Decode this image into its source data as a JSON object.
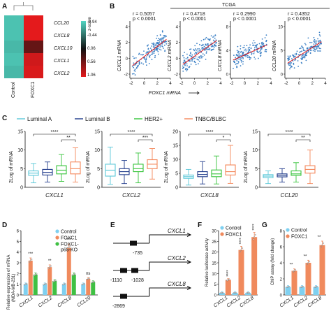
{
  "panel_letters": [
    "A",
    "B",
    "C",
    "D",
    "E",
    "F",
    "G"
  ],
  "colors": {
    "heat_low": "#52d6c3",
    "heat_mid": "#111111",
    "heat_high": "#e41a1c",
    "luminal_a": "#5bc8d8",
    "luminal_b": "#1f3a8a",
    "her2": "#36c43a",
    "tnbc": "#f4875a",
    "control": "#7fd0f0",
    "foxc1": "#f08a5d",
    "foxc1_ko": "#3fc043",
    "scatter": "#3a7fc4",
    "fitline": "#e41a1c"
  },
  "panelA": {
    "genes": [
      "CCL20",
      "CXCL8",
      "CXCL10",
      "CXCL1",
      "CXCL2"
    ],
    "groups": [
      "Control",
      "FOXC1"
    ],
    "zscore_title": "z-score",
    "scale_ticks": [
      "-0.94",
      "-0.44",
      "0.06",
      "0.56",
      "1.06"
    ],
    "heat": [
      [
        -0.9,
        1.0
      ],
      [
        -0.9,
        1.0
      ],
      [
        -0.85,
        0.4
      ],
      [
        -0.9,
        0.9
      ],
      [
        -0.85,
        0.95
      ]
    ]
  },
  "panelB": {
    "source": "TCGA",
    "xlabel": "FOXC1 mRNA",
    "x_ticks": [
      "-2",
      "0",
      "2",
      "4"
    ],
    "plots": [
      {
        "ylabel": "CXCL1 mRNA",
        "r": "r = 0.5057",
        "p": "p < 0.0001",
        "y_ticks": [
          "-2",
          "0",
          "2",
          "4"
        ]
      },
      {
        "ylabel": "CXCL2 mRNA",
        "r": "r = 0.4718",
        "p": "p < 0.0001",
        "y_ticks": [
          "-2",
          "0",
          "2",
          "4"
        ]
      },
      {
        "ylabel": "CXCL8 mRNA",
        "r": "r = 0.2990",
        "p": "p < 0.0001",
        "y_ticks": [
          "0",
          "4",
          "8"
        ]
      },
      {
        "ylabel": "CCL20 mRNA",
        "r": "r = 0.4352",
        "p": "p < 0.0001",
        "y_ticks": [
          "0",
          "5",
          "10"
        ]
      }
    ]
  },
  "panelC": {
    "legend": [
      "Luminal A",
      "Luminal B",
      "HER2+",
      "TNBC/BLBC"
    ],
    "ylabel": "2Log of mRNA",
    "plots": [
      {
        "gene": "CXCL1",
        "y_ticks": [
          "0",
          "5",
          "10",
          "15"
        ],
        "ymax": 15,
        "sig_top": "****",
        "sig_right": "**",
        "boxes": [
          [
            1.2,
            3.2,
            3.8,
            4.4,
            6.4
          ],
          [
            1.4,
            3.3,
            4.0,
            4.8,
            6.8
          ],
          [
            1.6,
            3.6,
            4.6,
            5.8,
            8.8
          ],
          [
            1.4,
            3.6,
            5.0,
            6.8,
            10.6
          ]
        ]
      },
      {
        "gene": "CXCL2",
        "y_ticks": [
          "0",
          "5",
          "10",
          "15"
        ],
        "ymax": 15,
        "sig_top": "****",
        "sig_right": "***",
        "boxes": [
          [
            0.8,
            3.0,
            4.6,
            6.2,
            10.8
          ],
          [
            1.0,
            3.4,
            4.2,
            5.0,
            7.2
          ],
          [
            1.2,
            4.2,
            5.0,
            6.2,
            9.2
          ],
          [
            2.2,
            5.0,
            6.2,
            7.4,
            10.4
          ]
        ]
      },
      {
        "gene": "CXCL8",
        "y_ticks": [
          "0",
          "5",
          "10",
          "15",
          "20"
        ],
        "ymax": 20,
        "sig_top": "****",
        "sig_right": "*",
        "boxes": [
          [
            0.8,
            3.2,
            3.8,
            4.4,
            6.4
          ],
          [
            1.2,
            3.8,
            4.6,
            5.6,
            9.2
          ],
          [
            1.2,
            3.8,
            4.8,
            6.2,
            11.2
          ],
          [
            1.4,
            4.4,
            5.6,
            8.0,
            15.0
          ]
        ]
      },
      {
        "gene": "CCL20",
        "y_ticks": [
          "0",
          "5",
          "10",
          "15"
        ],
        "ymax": 15,
        "sig_top": "****",
        "sig_right": "**",
        "boxes": [
          [
            1.0,
            2.6,
            3.0,
            3.4,
            4.4
          ],
          [
            1.4,
            2.8,
            3.2,
            3.6,
            5.0
          ],
          [
            1.4,
            3.2,
            3.6,
            4.4,
            6.6
          ],
          [
            1.0,
            3.8,
            4.8,
            5.8,
            10.0
          ]
        ]
      }
    ]
  },
  "panelD": {
    "ylabel": "Relative expression of mRNA",
    "ylabel2": "(MDA-MB-231)",
    "legend": [
      "Control",
      "FOXC1",
      "FOXC1-",
      "p65-KO"
    ],
    "categories": [
      "CXCL1",
      "CXCL2",
      "CXCL8",
      "CCL20"
    ],
    "y_ticks": [
      "0",
      "1",
      "2",
      "3",
      "4",
      "5",
      "6"
    ],
    "ymax": 6,
    "series": [
      [
        1.0,
        1.0,
        1.0,
        1.0
      ],
      [
        3.2,
        2.6,
        4.4,
        1.5
      ],
      [
        1.9,
        1.3,
        1.9,
        1.2
      ]
    ],
    "sig": [
      "***",
      "**",
      "***",
      "ns"
    ]
  },
  "panelE": {
    "promoters": [
      {
        "gene": "CXCL1",
        "sites": [
          "-735"
        ]
      },
      {
        "gene": "CXCL2",
        "sites": [
          "-1110",
          "-1028"
        ]
      },
      {
        "gene": "CXCL8",
        "sites": [
          "-2869"
        ]
      }
    ]
  },
  "panelF": {
    "ylabel": "Relative luciferase activity",
    "legend": [
      "Control",
      "FOXC1"
    ],
    "categories": [
      "CXCL1",
      "CXCL2",
      "CXCL8"
    ],
    "y_ticks": [
      "0",
      "5",
      "10",
      "15",
      "20",
      "25",
      "30"
    ],
    "ymax": 30,
    "series": [
      [
        1.0,
        1.0,
        1.0
      ],
      [
        7.0,
        21.0,
        27.0
      ]
    ],
    "sig": [
      "****",
      "****",
      "****"
    ]
  },
  "panelG": {
    "ylabel": "ChIP assay (fold change)",
    "legend": [
      "Control",
      "FOXC1"
    ],
    "categories": [
      "CXCL1",
      "CXCL2",
      "CXCL8"
    ],
    "y_ticks": [
      "0",
      "2",
      "4",
      "6",
      "8"
    ],
    "ymax": 8,
    "series": [
      [
        1.0,
        1.0,
        1.0
      ],
      [
        3.0,
        4.0,
        6.2
      ]
    ],
    "sig": [
      "**",
      "**",
      "**"
    ]
  }
}
